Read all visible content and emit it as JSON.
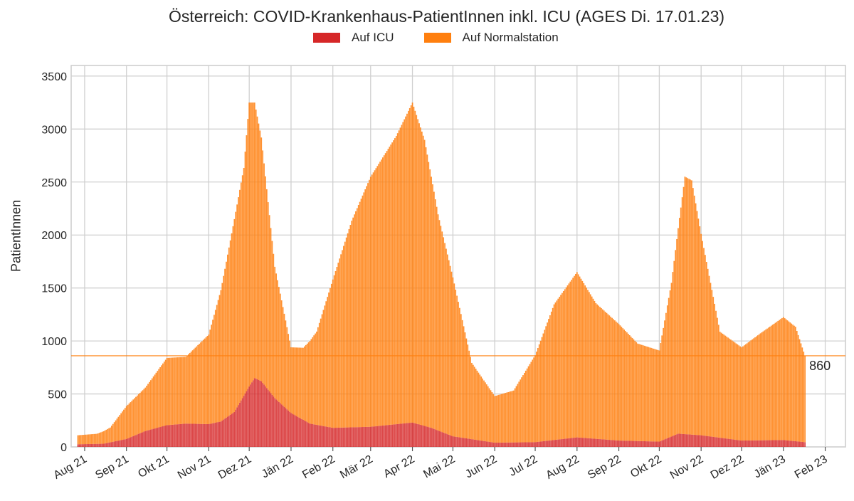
{
  "chart_data": {
    "type": "bar",
    "stacked": true,
    "title": "Österreich: COVID-Krankenhaus-PatientInnen inkl. ICU (AGES Di. 17.01.23)",
    "ylabel": "PatientInnen",
    "xlabel": "",
    "ylim": [
      0,
      3600
    ],
    "yticks": [
      0,
      500,
      1000,
      1500,
      2000,
      2500,
      3000,
      3500
    ],
    "x_start": "2021-07-27",
    "x_end": "2023-01-17",
    "month_ticks": [
      {
        "date": "2021-08-01",
        "label": "Aug 21"
      },
      {
        "date": "2021-09-01",
        "label": "Sep 21"
      },
      {
        "date": "2021-10-01",
        "label": "Okt 21"
      },
      {
        "date": "2021-11-01",
        "label": "Nov 21"
      },
      {
        "date": "2021-12-01",
        "label": "Dez 21"
      },
      {
        "date": "2022-01-01",
        "label": "Jän 22"
      },
      {
        "date": "2022-02-01",
        "label": "Feb 22"
      },
      {
        "date": "2022-03-01",
        "label": "Mär 22"
      },
      {
        "date": "2022-04-01",
        "label": "Apr 22"
      },
      {
        "date": "2022-05-01",
        "label": "Mai 22"
      },
      {
        "date": "2022-06-01",
        "label": "Jun 22"
      },
      {
        "date": "2022-07-01",
        "label": "Jul 22"
      },
      {
        "date": "2022-08-01",
        "label": "Aug 22"
      },
      {
        "date": "2022-09-01",
        "label": "Sep 22"
      },
      {
        "date": "2022-10-01",
        "label": "Okt 22"
      },
      {
        "date": "2022-11-01",
        "label": "Nov 22"
      },
      {
        "date": "2022-12-01",
        "label": "Dez 22"
      },
      {
        "date": "2023-01-01",
        "label": "Jän 23"
      },
      {
        "date": "2023-02-01",
        "label": "Feb 23"
      }
    ],
    "series": [
      {
        "name": "Auf ICU",
        "color": "#d62728",
        "points": [
          {
            "date": "2021-07-27",
            "value": 25
          },
          {
            "date": "2021-08-15",
            "value": 30
          },
          {
            "date": "2021-09-01",
            "value": 75
          },
          {
            "date": "2021-09-15",
            "value": 150
          },
          {
            "date": "2021-10-01",
            "value": 205
          },
          {
            "date": "2021-10-15",
            "value": 220
          },
          {
            "date": "2021-11-01",
            "value": 215
          },
          {
            "date": "2021-11-10",
            "value": 240
          },
          {
            "date": "2021-11-20",
            "value": 330
          },
          {
            "date": "2021-12-01",
            "value": 570
          },
          {
            "date": "2021-12-05",
            "value": 650
          },
          {
            "date": "2021-12-10",
            "value": 620
          },
          {
            "date": "2021-12-20",
            "value": 460
          },
          {
            "date": "2022-01-01",
            "value": 320
          },
          {
            "date": "2022-01-15",
            "value": 220
          },
          {
            "date": "2022-02-01",
            "value": 180
          },
          {
            "date": "2022-03-01",
            "value": 190
          },
          {
            "date": "2022-04-01",
            "value": 230
          },
          {
            "date": "2022-04-15",
            "value": 180
          },
          {
            "date": "2022-05-01",
            "value": 100
          },
          {
            "date": "2022-06-01",
            "value": 40
          },
          {
            "date": "2022-07-01",
            "value": 45
          },
          {
            "date": "2022-08-01",
            "value": 90
          },
          {
            "date": "2022-09-01",
            "value": 60
          },
          {
            "date": "2022-10-01",
            "value": 50
          },
          {
            "date": "2022-10-15",
            "value": 125
          },
          {
            "date": "2022-11-01",
            "value": 110
          },
          {
            "date": "2022-12-01",
            "value": 60
          },
          {
            "date": "2023-01-01",
            "value": 65
          },
          {
            "date": "2023-01-17",
            "value": 45
          }
        ]
      },
      {
        "name": "Auf Normalstation",
        "color": "#ff7f0e",
        "points": [
          {
            "date": "2021-07-27",
            "value": 85
          },
          {
            "date": "2021-08-10",
            "value": 95
          },
          {
            "date": "2021-08-20",
            "value": 140
          },
          {
            "date": "2021-09-01",
            "value": 310
          },
          {
            "date": "2021-09-15",
            "value": 410
          },
          {
            "date": "2021-10-01",
            "value": 635
          },
          {
            "date": "2021-10-15",
            "value": 630
          },
          {
            "date": "2021-11-01",
            "value": 845
          },
          {
            "date": "2021-11-10",
            "value": 1240
          },
          {
            "date": "2021-11-20",
            "value": 1820
          },
          {
            "date": "2021-11-27",
            "value": 2150
          },
          {
            "date": "2021-12-01",
            "value": 2680
          },
          {
            "date": "2021-12-05",
            "value": 2600
          },
          {
            "date": "2021-12-10",
            "value": 2300
          },
          {
            "date": "2021-12-20",
            "value": 1240
          },
          {
            "date": "2022-01-01",
            "value": 620
          },
          {
            "date": "2022-01-10",
            "value": 680
          },
          {
            "date": "2022-01-20",
            "value": 880
          },
          {
            "date": "2022-02-01",
            "value": 1400
          },
          {
            "date": "2022-02-15",
            "value": 1950
          },
          {
            "date": "2022-03-01",
            "value": 2360
          },
          {
            "date": "2022-03-20",
            "value": 2720
          },
          {
            "date": "2022-04-01",
            "value": 3020
          },
          {
            "date": "2022-04-10",
            "value": 2700
          },
          {
            "date": "2022-04-20",
            "value": 2040
          },
          {
            "date": "2022-05-01",
            "value": 1500
          },
          {
            "date": "2022-05-15",
            "value": 720
          },
          {
            "date": "2022-06-01",
            "value": 440
          },
          {
            "date": "2022-06-15",
            "value": 490
          },
          {
            "date": "2022-07-01",
            "value": 820
          },
          {
            "date": "2022-07-15",
            "value": 1280
          },
          {
            "date": "2022-08-01",
            "value": 1560
          },
          {
            "date": "2022-08-15",
            "value": 1280
          },
          {
            "date": "2022-09-01",
            "value": 1100
          },
          {
            "date": "2022-09-15",
            "value": 920
          },
          {
            "date": "2022-10-01",
            "value": 860
          },
          {
            "date": "2022-10-10",
            "value": 1450
          },
          {
            "date": "2022-10-20",
            "value": 2430
          },
          {
            "date": "2022-10-25",
            "value": 2400
          },
          {
            "date": "2022-11-01",
            "value": 1900
          },
          {
            "date": "2022-11-15",
            "value": 1000
          },
          {
            "date": "2022-12-01",
            "value": 880
          },
          {
            "date": "2022-12-15",
            "value": 1010
          },
          {
            "date": "2023-01-01",
            "value": 1160
          },
          {
            "date": "2023-01-10",
            "value": 1080
          },
          {
            "date": "2023-01-17",
            "value": 815
          }
        ]
      }
    ],
    "reference_line": {
      "value": 860,
      "label": "860",
      "color": "#ff7f0e"
    },
    "grid": true,
    "legend": "top-center"
  }
}
